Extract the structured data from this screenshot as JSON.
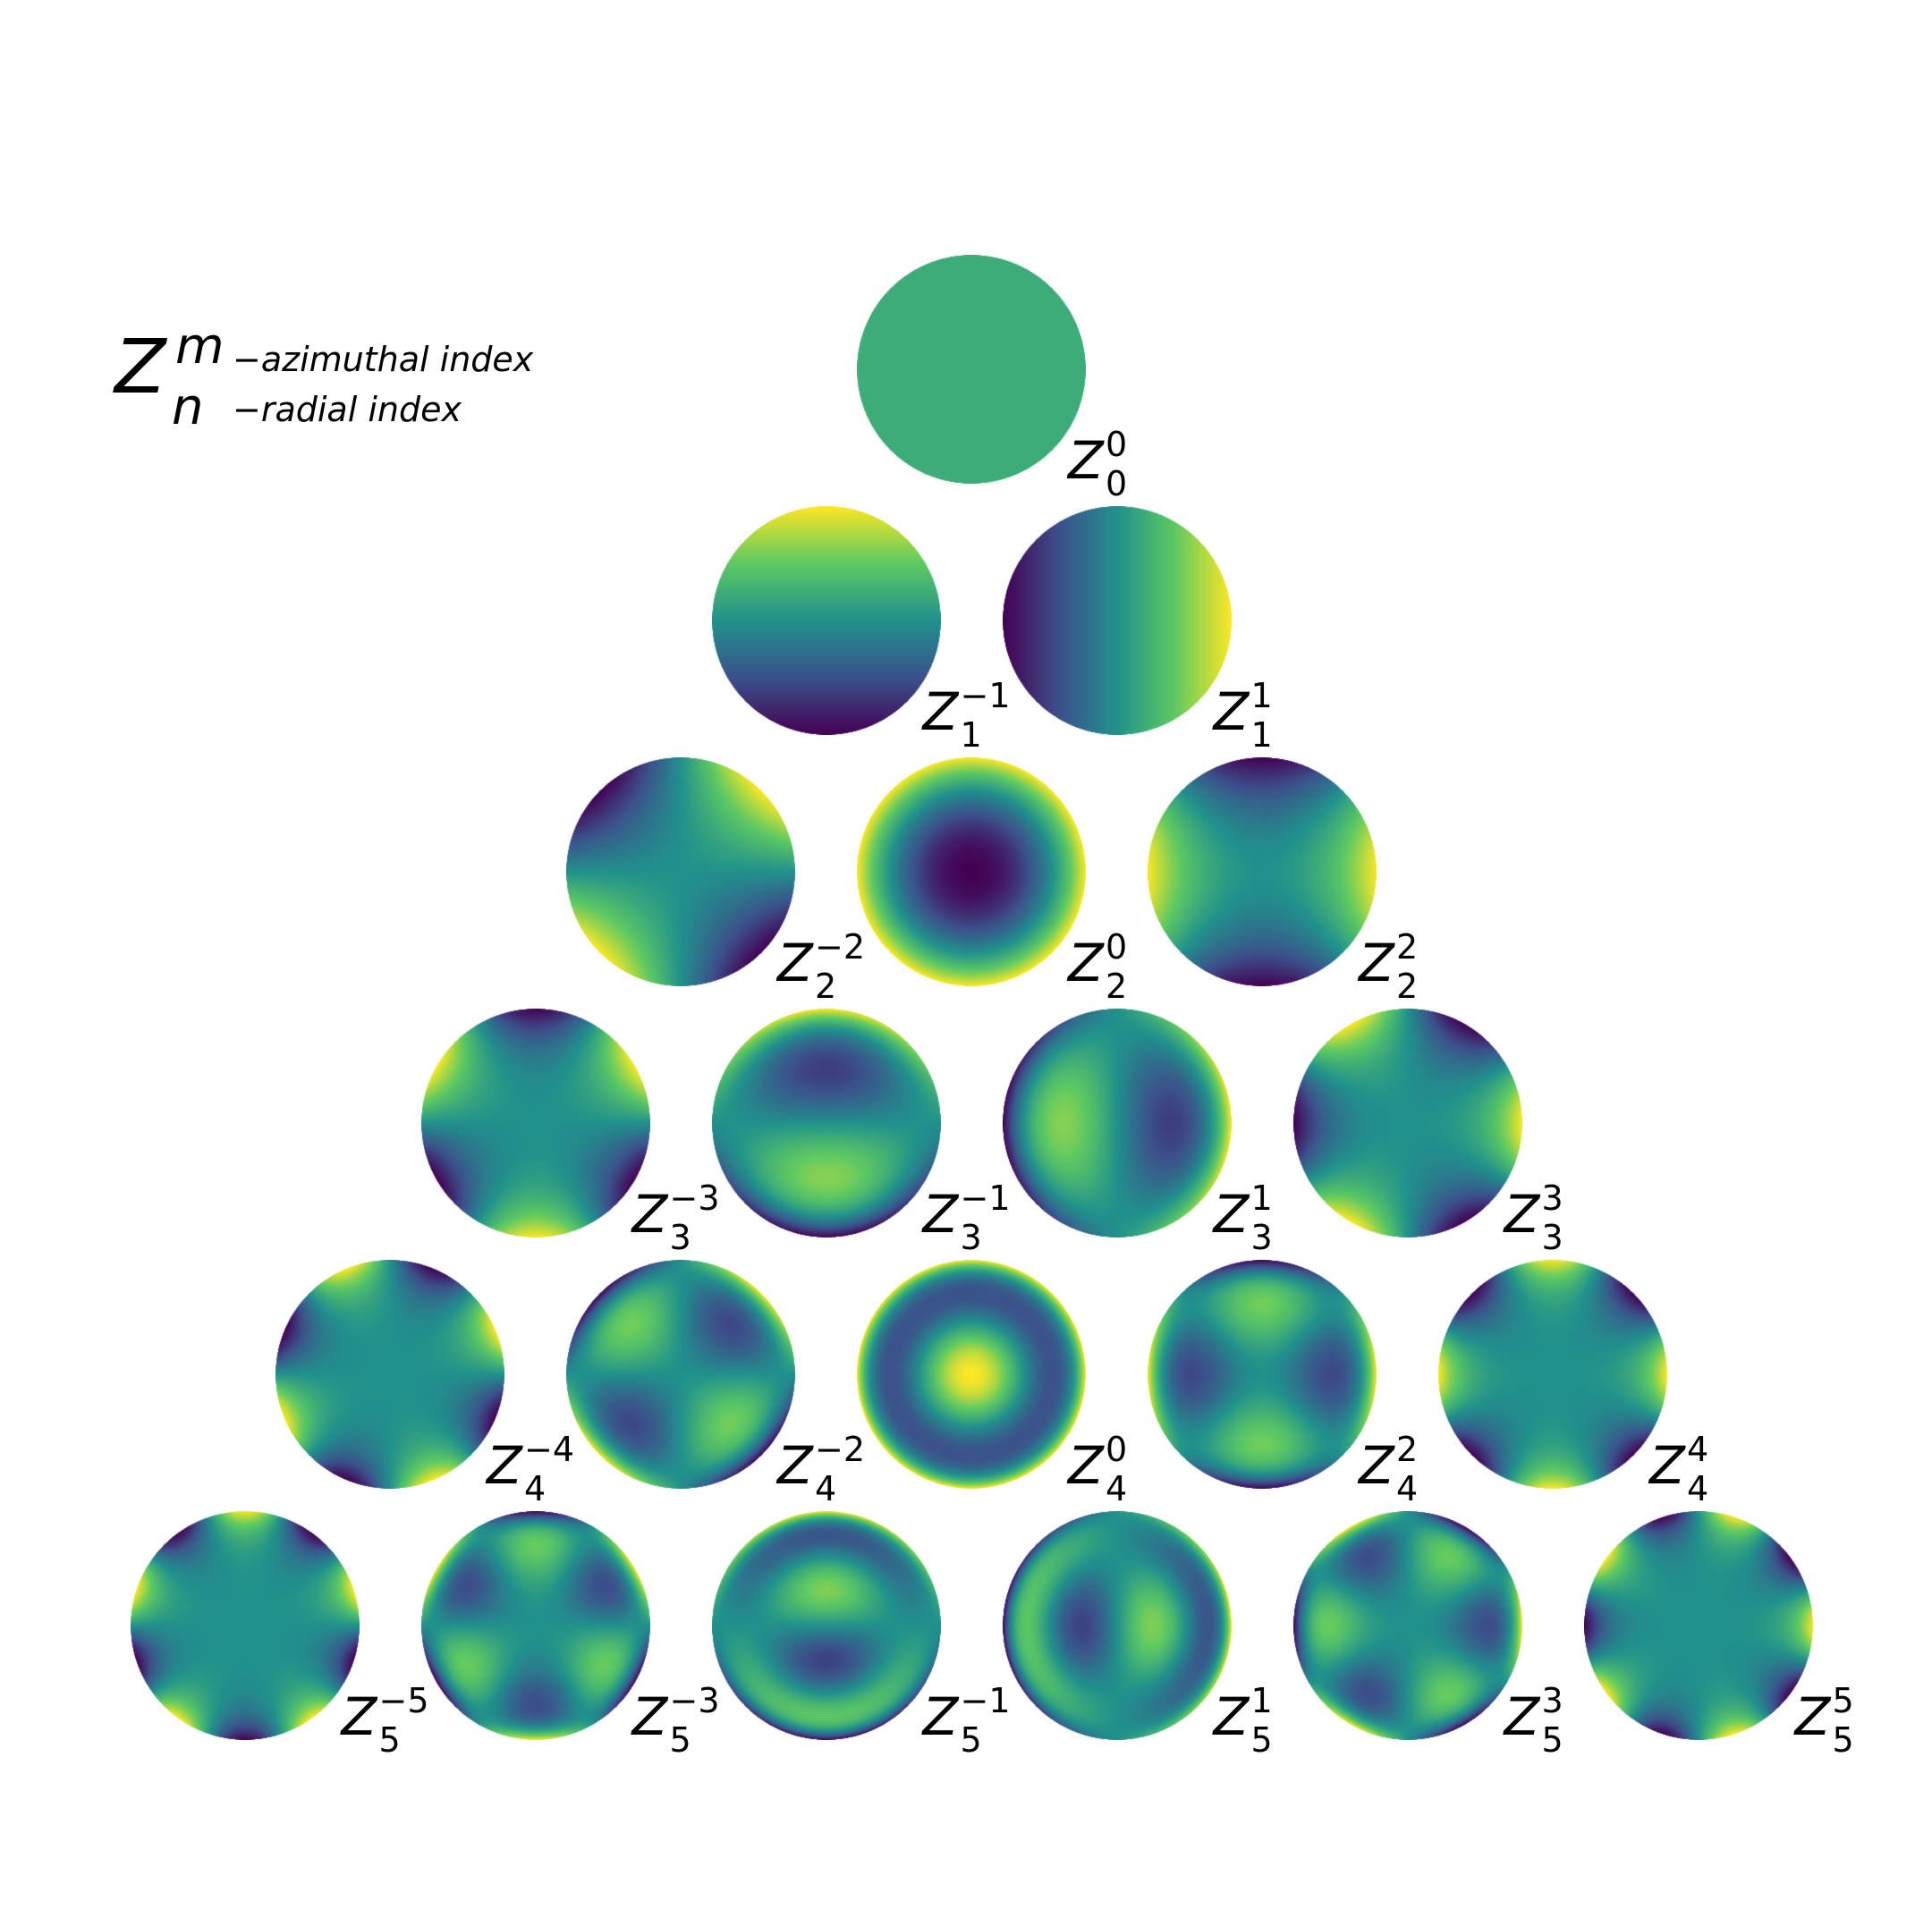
{
  "legend": {
    "symbol": "Z",
    "superscript": "m",
    "subscript": "n",
    "azimuthal_text": "−azimuthal index",
    "radial_text": "−radial index"
  },
  "colormap": [
    "#440154",
    "#3b528b",
    "#21918c",
    "#5ec962",
    "#fde725"
  ],
  "modes": [
    {
      "n": 0,
      "m": 0,
      "sub": "0",
      "sup": "0"
    },
    {
      "n": 1,
      "m": -1,
      "sub": "1",
      "sup": "−1"
    },
    {
      "n": 1,
      "m": 1,
      "sub": "1",
      "sup": "1"
    },
    {
      "n": 2,
      "m": -2,
      "sub": "2",
      "sup": "−2"
    },
    {
      "n": 2,
      "m": 0,
      "sub": "2",
      "sup": "0"
    },
    {
      "n": 2,
      "m": 2,
      "sub": "2",
      "sup": "2"
    },
    {
      "n": 3,
      "m": -3,
      "sub": "3",
      "sup": "−3"
    },
    {
      "n": 3,
      "m": -1,
      "sub": "3",
      "sup": "−1"
    },
    {
      "n": 3,
      "m": 1,
      "sub": "3",
      "sup": "1"
    },
    {
      "n": 3,
      "m": 3,
      "sub": "3",
      "sup": "3"
    },
    {
      "n": 4,
      "m": -4,
      "sub": "4",
      "sup": "−4"
    },
    {
      "n": 4,
      "m": -2,
      "sub": "4",
      "sup": "−2"
    },
    {
      "n": 4,
      "m": 0,
      "sub": "4",
      "sup": "0"
    },
    {
      "n": 4,
      "m": 2,
      "sub": "4",
      "sup": "2"
    },
    {
      "n": 4,
      "m": 4,
      "sub": "4",
      "sup": "4"
    },
    {
      "n": 5,
      "m": -5,
      "sub": "5",
      "sup": "−5"
    },
    {
      "n": 5,
      "m": -3,
      "sub": "5",
      "sup": "−3"
    },
    {
      "n": 5,
      "m": -1,
      "sub": "5",
      "sup": "−1"
    },
    {
      "n": 5,
      "m": 1,
      "sub": "5",
      "sup": "1"
    },
    {
      "n": 5,
      "m": 3,
      "sub": "5",
      "sup": "3"
    },
    {
      "n": 5,
      "m": 5,
      "sub": "5",
      "sup": "5"
    }
  ]
}
